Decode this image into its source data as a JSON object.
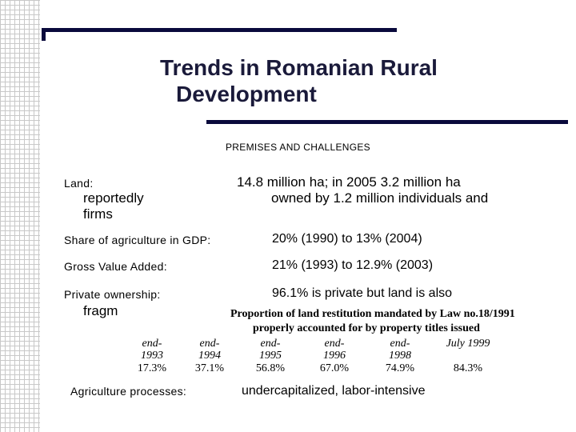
{
  "slide": {
    "title_line1": "Trends in Romanian Rural",
    "title_line2": "Development",
    "subtitle": "PREMISES AND CHALLENGES",
    "land": {
      "label": "Land:",
      "value": "14.8 million ha; in 2005 3.2 million ha",
      "cont1": "reportedly",
      "cont2": "owned  by 1.2 million individuals and",
      "cont3": "firms"
    },
    "rows": [
      {
        "label": "Share of agriculture in GDP:",
        "value": "20% (1990) to 13% (2004)"
      },
      {
        "label": "Gross Value Added:",
        "value": "21% (1993) to 12.9% (2003)"
      },
      {
        "label": "Private ownership:",
        "value": "96.1% is private but land is also"
      }
    ],
    "fragment": "fragm",
    "processes": {
      "label": "Agriculture processes:",
      "value": "undercapitalized, labor-intensive"
    }
  },
  "table": {
    "caption_line1": "Proportion of land restitution mandated by Law no.18/1991",
    "caption_line2": "properly accounted for by property titles issued",
    "columns": [
      {
        "line1": "end-",
        "line2": "1993",
        "value": "17.3%"
      },
      {
        "line1": "end-",
        "line2": "1994",
        "value": "37.1%"
      },
      {
        "line1": "end-",
        "line2": "1995",
        "value": "56.8%"
      },
      {
        "line1": "end-",
        "line2": "1996",
        "value": "67.0%"
      },
      {
        "line1": "end-",
        "line2": "1998",
        "value": "74.9%"
      },
      {
        "line1": "July 1999",
        "line2": "",
        "value": "84.3%"
      }
    ]
  }
}
